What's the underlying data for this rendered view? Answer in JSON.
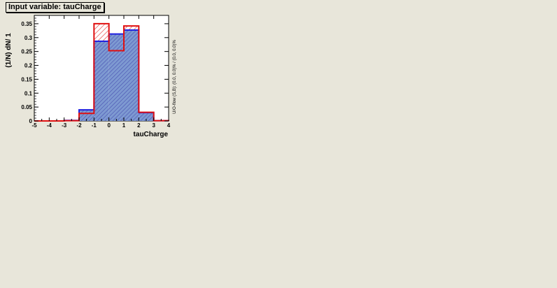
{
  "title": "Input variable: tauCharge",
  "overflow_text": "U/O-flow (S,B): (0.0, 0.0)% / (0.0, 0.0)%",
  "colors": {
    "signal": "#2020e0",
    "background": "#e01010",
    "signal_fill": "#7d99d1"
  },
  "chart_data": {
    "type": "histogram",
    "xlabel": "tauCharge",
    "ylabel": "(1/N) dN/ 1",
    "xlim": [
      -5,
      4
    ],
    "ylim": [
      0,
      0.38
    ],
    "x_ticks": [
      "-5",
      "-4",
      "-3",
      "-2",
      "-1",
      "0",
      "1",
      "2",
      "3",
      "4"
    ],
    "y_ticks": [
      "0",
      "0.05",
      "0.1",
      "0.15",
      "0.2",
      "0.25",
      "0.3",
      "0.35"
    ],
    "bin_edges": [
      -5,
      -4,
      -3,
      -2,
      -1,
      0,
      1,
      2,
      3,
      4
    ],
    "series": [
      {
        "values": [
          0.0,
          0.0,
          0.002,
          0.04,
          0.287,
          0.313,
          0.327,
          0.03,
          0.001
        ]
      },
      {
        "values": [
          0.0,
          0.0,
          0.001,
          0.027,
          0.35,
          0.253,
          0.342,
          0.031,
          0.001
        ]
      }
    ]
  }
}
